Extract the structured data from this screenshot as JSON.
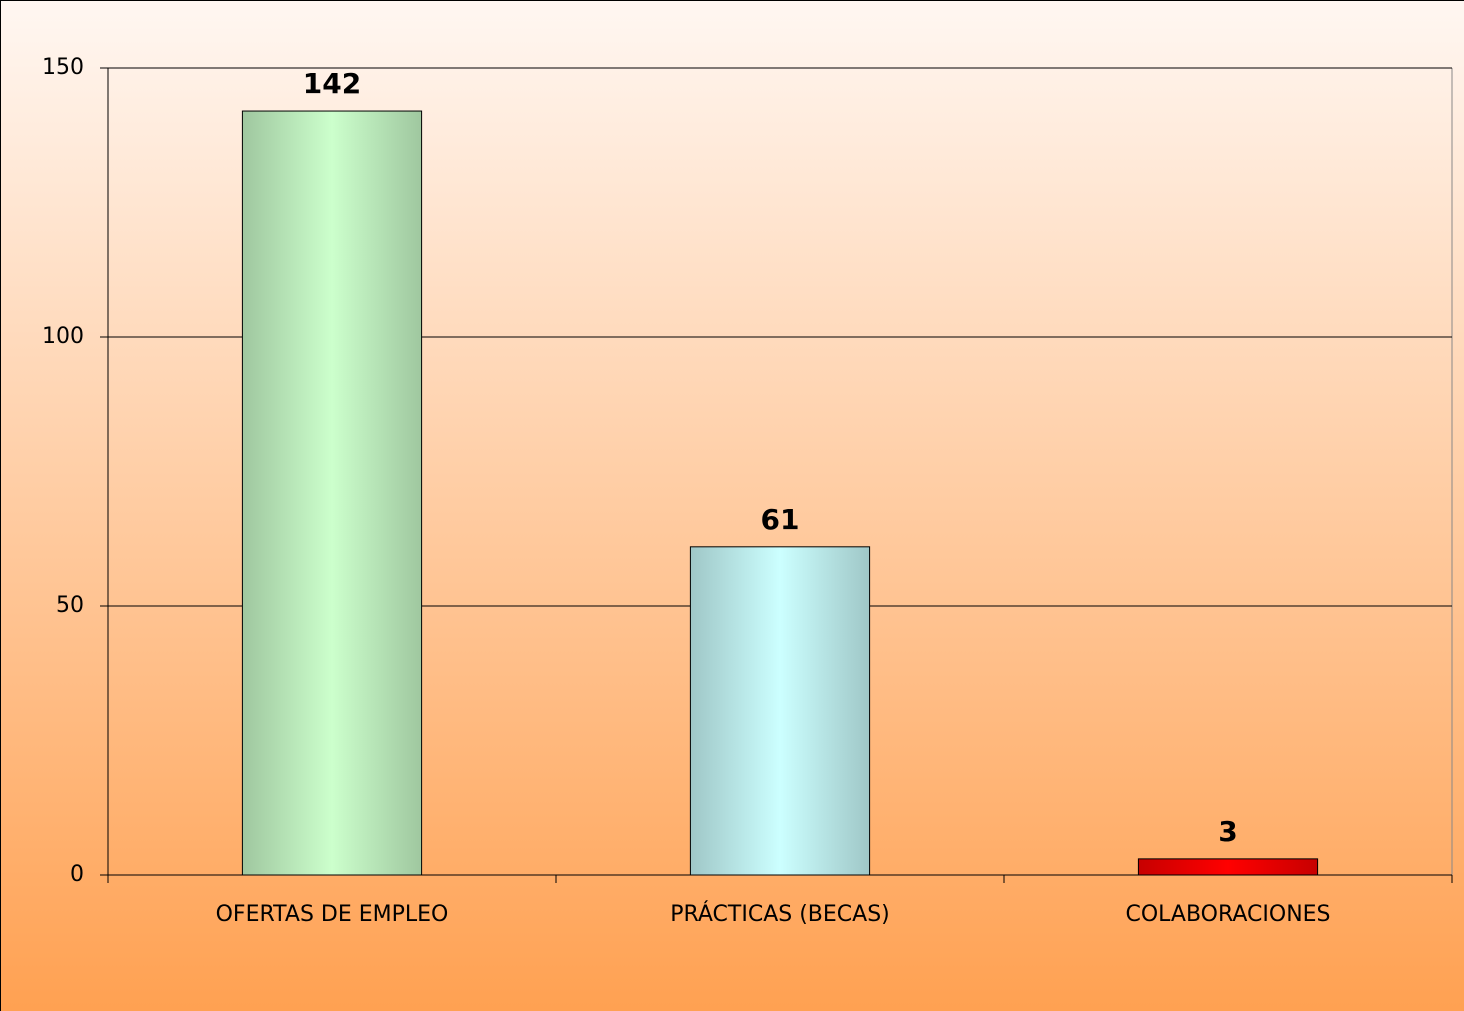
{
  "chart_data": {
    "type": "bar",
    "categories": [
      "OFERTAS DE EMPLEO",
      "PRÁCTICAS (BECAS)",
      "COLABORACIONES"
    ],
    "values": [
      142,
      61,
      3
    ],
    "colors": [
      "#ccffcc",
      "#ccffff",
      "#ff0000"
    ],
    "ylim": [
      0,
      150
    ],
    "yticks": [
      0,
      50,
      100,
      150
    ],
    "grid": true
  }
}
